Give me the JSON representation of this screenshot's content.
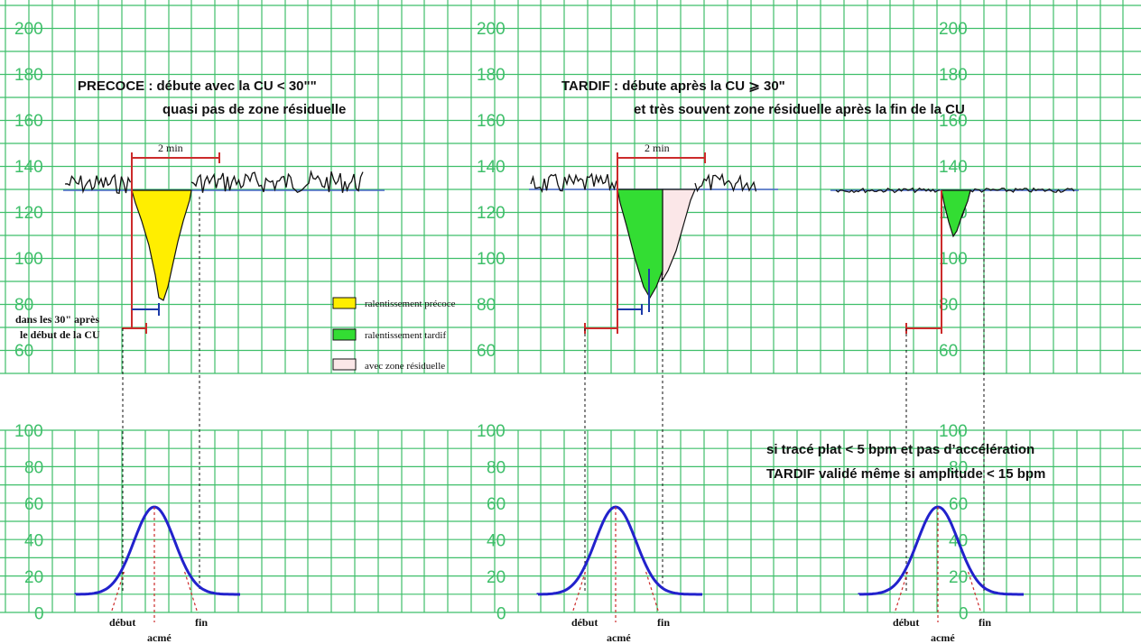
{
  "colors": {
    "background": "#ffffff",
    "grid": "#3fbf6a",
    "axis_label": "#3fbf6a",
    "trace": "#111111",
    "baseline": "#4a66c9",
    "early_fill": "#ffee00",
    "late_fill": "#33dd33",
    "residual_fill": "#fbe7e8",
    "marker_red": "#cc2b2b",
    "marker_blue": "#1c3aa8",
    "contraction": "#2222cc",
    "guide_dashed": "#111111"
  },
  "fhr_axis_labels": [
    "200",
    "180",
    "160",
    "140",
    "120",
    "100",
    "80",
    "60"
  ],
  "uc_axis_labels": [
    "100",
    "80",
    "60",
    "40",
    "20",
    "0"
  ],
  "titles": {
    "early_line1": "PRECOCE : débute avec la CU < 30\"\"",
    "early_line2": "quasi pas de zone résiduelle",
    "late_line1": "TARDIF : débute après la CU ⩾ 30\"",
    "late_line2": "et très souvent zone résiduelle après la fin de la  CU"
  },
  "two_min_label": "2 min",
  "early_note_line1": "dans les 30\" après",
  "early_note_line2": "le début de la CU",
  "legend": {
    "early": "ralentissement précoce",
    "late": "ralentissement tardif",
    "residual": "avec zone résiduelle"
  },
  "flat_note": {
    "line1": "si tracé plat < 5 bpm et pas d’accélération",
    "line2": "TARDIF validé même si amplitude < 15 bpm"
  },
  "uc_labels": {
    "start": "début",
    "end": "fin",
    "peak": "acmé"
  }
}
